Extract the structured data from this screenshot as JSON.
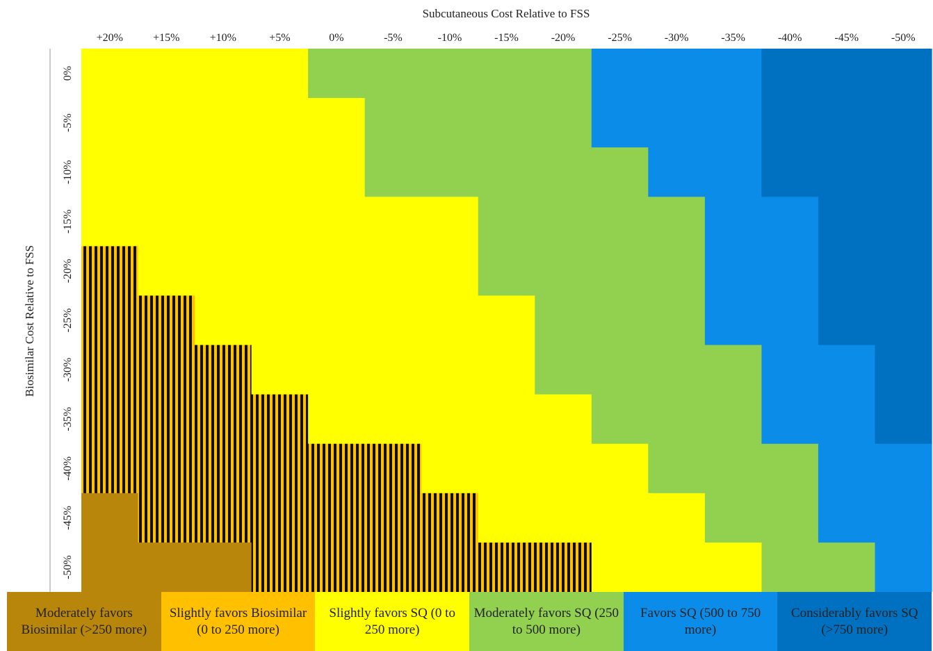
{
  "chart_data": {
    "type": "heatmap",
    "title": "",
    "xlabel": "Subcutaneous Cost Relative to FSS",
    "ylabel": "Biosimilar Cost Relative to FSS",
    "x_categories": [
      "+20%",
      "+15%",
      "+10%",
      "+5%",
      "0%",
      "-5%",
      "-10%",
      "-15%",
      "-20%",
      "-25%",
      "-30%",
      "-35%",
      "-40%",
      "-45%",
      "-50%"
    ],
    "y_categories": [
      "0%",
      "-5%",
      "-10%",
      "-15%",
      "-20%",
      "-25%",
      "-30%",
      "-35%",
      "-40%",
      "-45%",
      "-50%"
    ],
    "category_colors": {
      "MB": "#B8860B",
      "SB": "#FFC000",
      "SS": "#FFFF00",
      "MS": "#92D050",
      "FS": "#0B8CE9",
      "CS": "#0070C0"
    },
    "cells": [
      [
        "SS",
        "SS",
        "SS",
        "SS",
        "MS",
        "MS",
        "MS",
        "MS",
        "MS",
        "FS",
        "FS",
        "FS",
        "CS",
        "CS",
        "CS"
      ],
      [
        "SS",
        "SS",
        "SS",
        "SS",
        "SS",
        "MS",
        "MS",
        "MS",
        "MS",
        "FS",
        "FS",
        "FS",
        "CS",
        "CS",
        "CS"
      ],
      [
        "SS",
        "SS",
        "SS",
        "SS",
        "SS",
        "MS",
        "MS",
        "MS",
        "MS",
        "MS",
        "FS",
        "FS",
        "CS",
        "CS",
        "CS"
      ],
      [
        "SS",
        "SS",
        "SS",
        "SS",
        "SS",
        "SS",
        "SS",
        "MS",
        "MS",
        "MS",
        "MS",
        "FS",
        "FS",
        "CS",
        "CS"
      ],
      [
        "SB",
        "SS",
        "SS",
        "SS",
        "SS",
        "SS",
        "SS",
        "MS",
        "MS",
        "MS",
        "MS",
        "FS",
        "FS",
        "CS",
        "CS"
      ],
      [
        "SB",
        "SB",
        "SS",
        "SS",
        "SS",
        "SS",
        "SS",
        "SS",
        "MS",
        "MS",
        "MS",
        "FS",
        "FS",
        "CS",
        "CS"
      ],
      [
        "SB",
        "SB",
        "SB",
        "SS",
        "SS",
        "SS",
        "SS",
        "SS",
        "MS",
        "MS",
        "MS",
        "MS",
        "FS",
        "FS",
        "CS"
      ],
      [
        "SB",
        "SB",
        "SB",
        "SB",
        "SS",
        "SS",
        "SS",
        "SS",
        "SS",
        "MS",
        "MS",
        "MS",
        "FS",
        "FS",
        "CS"
      ],
      [
        "SB",
        "SB",
        "SB",
        "SB",
        "SB",
        "SB",
        "SS",
        "SS",
        "SS",
        "SS",
        "MS",
        "MS",
        "MS",
        "FS",
        "FS"
      ],
      [
        "MB",
        "SB",
        "SB",
        "SB",
        "SB",
        "SB",
        "SB",
        "SS",
        "SS",
        "SS",
        "SS",
        "MS",
        "MS",
        "FS",
        "FS"
      ],
      [
        "MB",
        "MB",
        "MB",
        "SB",
        "SB",
        "SB",
        "SB",
        "SB",
        "SB",
        "SS",
        "SS",
        "SS",
        "MS",
        "MS",
        "FS"
      ]
    ],
    "hatched_category": "SB",
    "legend": [
      {
        "key": "MB",
        "label": "Moderately favors Biosimilar (>250 more)",
        "color": "#B8860B"
      },
      {
        "key": "SB",
        "label": "Slightly favors Biosimilar (0 to 250 more)",
        "color": "#FFC000"
      },
      {
        "key": "SS",
        "label": "Slightly favors SQ (0 to 250 more)",
        "color": "#FFFF00"
      },
      {
        "key": "MS",
        "label": "Moderately favors SQ (250 to 500 more)",
        "color": "#92D050"
      },
      {
        "key": "FS",
        "label": "Favors SQ (500 to 750 more)",
        "color": "#0B8CE9"
      },
      {
        "key": "CS",
        "label": "Considerably favors SQ (>750 more)",
        "color": "#0070C0"
      }
    ],
    "legend_placement": "bottom",
    "grid": false
  }
}
